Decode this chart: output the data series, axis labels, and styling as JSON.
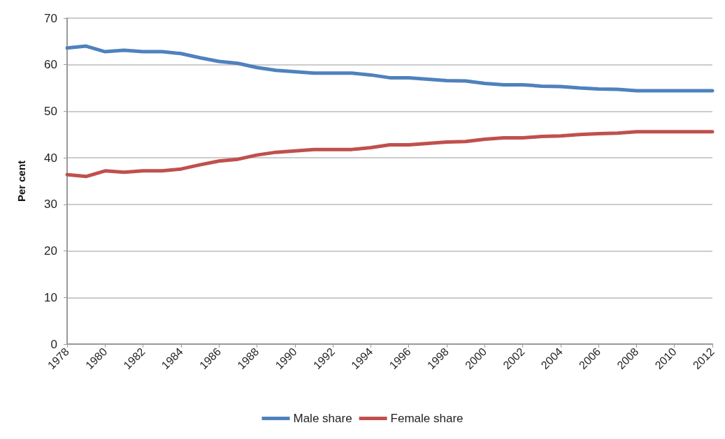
{
  "chart_data": {
    "type": "line",
    "ylabel": "Per cent",
    "x": [
      1978,
      1979,
      1980,
      1981,
      1982,
      1983,
      1984,
      1985,
      1986,
      1987,
      1988,
      1989,
      1990,
      1991,
      1992,
      1993,
      1994,
      1995,
      1996,
      1997,
      1998,
      1999,
      2000,
      2001,
      2002,
      2003,
      2004,
      2005,
      2006,
      2007,
      2008,
      2009,
      2010,
      2011,
      2012
    ],
    "series": [
      {
        "name": "Male share",
        "color": "#4f81bd",
        "values": [
          63.6,
          64.0,
          62.8,
          63.1,
          62.8,
          62.8,
          62.4,
          61.5,
          60.7,
          60.3,
          59.4,
          58.8,
          58.5,
          58.2,
          58.2,
          58.2,
          57.8,
          57.2,
          57.2,
          56.9,
          56.6,
          56.5,
          56.0,
          55.7,
          55.7,
          55.4,
          55.3,
          55.0,
          54.8,
          54.7,
          54.4,
          54.4,
          54.4,
          54.4,
          54.4
        ]
      },
      {
        "name": "Female share",
        "color": "#c0504d",
        "values": [
          36.4,
          36.0,
          37.2,
          36.9,
          37.2,
          37.2,
          37.6,
          38.5,
          39.3,
          39.7,
          40.6,
          41.2,
          41.5,
          41.8,
          41.8,
          41.8,
          42.2,
          42.8,
          42.8,
          43.1,
          43.4,
          43.5,
          44.0,
          44.3,
          44.3,
          44.6,
          44.7,
          45.0,
          45.2,
          45.3,
          45.6,
          45.6,
          45.6,
          45.6,
          45.6
        ]
      }
    ],
    "xlim": [
      1978,
      2012
    ],
    "xticks": [
      1978,
      1980,
      1982,
      1984,
      1986,
      1988,
      1990,
      1992,
      1994,
      1996,
      1998,
      2000,
      2002,
      2004,
      2006,
      2008,
      2010,
      2012
    ],
    "ylim": [
      0,
      70
    ],
    "yticks": [
      0,
      10,
      20,
      30,
      40,
      50,
      60,
      70
    ],
    "grid": "y",
    "legend": "bottom",
    "marker": "none",
    "line_style": "solid"
  }
}
